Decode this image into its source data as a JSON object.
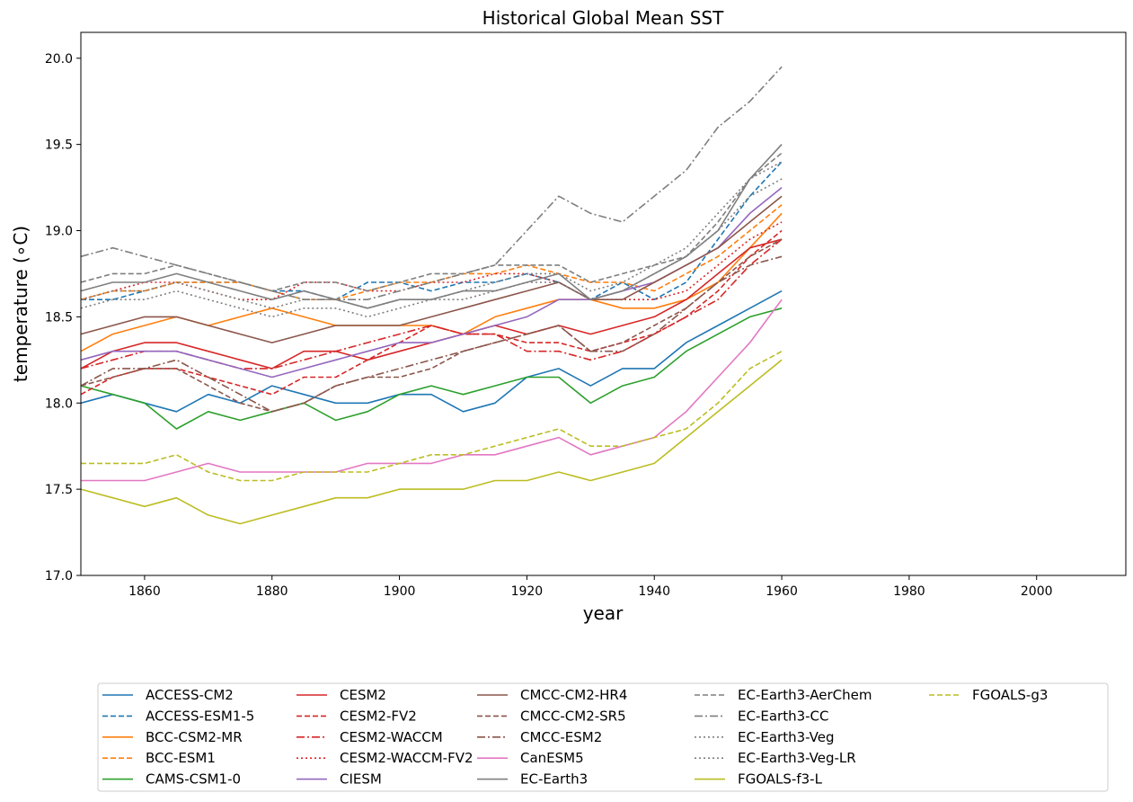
{
  "chart_data": {
    "type": "line",
    "title": "Historical Global Mean SST",
    "xlabel": "year",
    "ylabel": "temperature (∘C)",
    "xlim": [
      1850,
      2014
    ],
    "ylim": [
      17.0,
      20.15
    ],
    "xticks": [
      1860,
      1880,
      1900,
      1920,
      1940,
      1960,
      1980,
      2000
    ],
    "yticks": [
      17.0,
      17.5,
      18.0,
      18.5,
      19.0,
      19.5,
      20.0
    ],
    "grid": false,
    "legend_location": "bottom, outside plot, 5 columns",
    "x_step": 5,
    "series": [
      {
        "name": "ACCESS-CM2",
        "color": "#1f77b4",
        "linestyle": "solid",
        "values": [
          18.0,
          18.05,
          18.0,
          17.95,
          18.05,
          18.0,
          18.1,
          18.05,
          18.0,
          18.0,
          18.05,
          18.05,
          17.95,
          18.0,
          18.15,
          18.2,
          18.1,
          18.2,
          18.2,
          18.35,
          18.45,
          18.55,
          18.65
        ]
      },
      {
        "name": "ACCESS-ESM1-5",
        "color": "#1f77b4",
        "linestyle": "dashed",
        "values": [
          18.6,
          18.6,
          18.65,
          18.7,
          18.7,
          18.7,
          18.65,
          18.65,
          18.6,
          18.7,
          18.7,
          18.65,
          18.7,
          18.7,
          18.75,
          18.7,
          18.6,
          18.7,
          18.6,
          18.7,
          18.95,
          19.2,
          19.4
        ]
      },
      {
        "name": "BCC-CSM2-MR",
        "color": "#ff7f0e",
        "linestyle": "solid",
        "values": [
          18.3,
          18.4,
          18.45,
          18.5,
          18.45,
          18.5,
          18.55,
          18.5,
          18.45,
          18.45,
          18.45,
          18.45,
          18.4,
          18.5,
          18.55,
          18.6,
          18.6,
          18.55,
          18.55,
          18.6,
          18.7,
          18.9,
          19.1
        ]
      },
      {
        "name": "BCC-ESM1",
        "color": "#ff7f0e",
        "linestyle": "dashed",
        "values": [
          18.6,
          18.65,
          18.65,
          18.7,
          18.7,
          18.7,
          18.65,
          18.6,
          18.6,
          18.65,
          18.7,
          18.7,
          18.75,
          18.75,
          18.8,
          18.75,
          18.7,
          18.7,
          18.65,
          18.75,
          18.85,
          19.0,
          19.15
        ]
      },
      {
        "name": "CAMS-CSM1-0",
        "color": "#2ca02c",
        "linestyle": "solid",
        "values": [
          18.1,
          18.05,
          18.0,
          17.85,
          17.95,
          17.9,
          17.95,
          18.0,
          17.9,
          17.95,
          18.05,
          18.1,
          18.05,
          18.1,
          18.15,
          18.15,
          18.0,
          18.1,
          18.15,
          18.3,
          18.4,
          18.5,
          18.55
        ]
      },
      {
        "name": "CESM2",
        "color": "#d62728",
        "linestyle": "solid",
        "values": [
          18.2,
          18.3,
          18.35,
          18.35,
          18.3,
          18.25,
          18.2,
          18.3,
          18.3,
          18.25,
          18.3,
          18.35,
          18.4,
          18.45,
          18.4,
          18.45,
          18.4,
          18.45,
          18.5,
          18.6,
          18.75,
          18.9,
          18.95
        ]
      },
      {
        "name": "CESM2-FV2",
        "color": "#d62728",
        "linestyle": "dashed",
        "values": [
          18.05,
          18.15,
          18.2,
          18.2,
          18.15,
          18.1,
          18.05,
          18.15,
          18.15,
          18.25,
          18.35,
          18.45,
          18.4,
          18.4,
          18.35,
          18.35,
          18.3,
          18.35,
          18.4,
          18.5,
          18.65,
          18.85,
          19.0
        ]
      },
      {
        "name": "CESM2-WACCM",
        "color": "#d62728",
        "linestyle": "dashdot",
        "values": [
          18.2,
          18.25,
          18.3,
          18.3,
          18.25,
          18.2,
          18.2,
          18.25,
          18.3,
          18.35,
          18.4,
          18.45,
          18.4,
          18.4,
          18.3,
          18.3,
          18.25,
          18.3,
          18.4,
          18.5,
          18.6,
          18.8,
          18.95
        ]
      },
      {
        "name": "CESM2-WACCM-FV2",
        "color": "#d62728",
        "linestyle": "dotted",
        "values": [
          18.6,
          18.65,
          18.7,
          18.7,
          18.65,
          18.6,
          18.6,
          18.7,
          18.7,
          18.65,
          18.65,
          18.7,
          18.7,
          18.75,
          18.75,
          18.7,
          18.6,
          18.6,
          18.6,
          18.65,
          18.8,
          18.95,
          19.05
        ]
      },
      {
        "name": "CIESM",
        "color": "#9467bd",
        "linestyle": "solid",
        "values": [
          18.25,
          18.3,
          18.3,
          18.3,
          18.25,
          18.2,
          18.15,
          18.2,
          18.25,
          18.3,
          18.35,
          18.35,
          18.4,
          18.45,
          18.5,
          18.6,
          18.6,
          18.65,
          18.7,
          18.8,
          18.9,
          19.1,
          19.25
        ]
      },
      {
        "name": "CMCC-CM2-HR4",
        "color": "#8c564b",
        "linestyle": "solid",
        "values": [
          18.4,
          18.45,
          18.5,
          18.5,
          18.45,
          18.4,
          18.35,
          18.4,
          18.45,
          18.45,
          18.45,
          18.5,
          18.55,
          18.6,
          18.65,
          18.7,
          18.6,
          18.6,
          18.7,
          18.8,
          18.9,
          19.05,
          19.2
        ]
      },
      {
        "name": "CMCC-CM2-SR5",
        "color": "#8c564b",
        "linestyle": "dashed",
        "values": [
          18.1,
          18.15,
          18.2,
          18.2,
          18.1,
          18.0,
          17.95,
          18.0,
          18.1,
          18.15,
          18.15,
          18.2,
          18.3,
          18.35,
          18.4,
          18.45,
          18.3,
          18.35,
          18.45,
          18.55,
          18.7,
          18.85,
          18.95
        ]
      },
      {
        "name": "CMCC-ESM2",
        "color": "#8c564b",
        "linestyle": "dashdot",
        "values": [
          18.1,
          18.2,
          18.2,
          18.25,
          18.15,
          18.05,
          17.95,
          18.0,
          18.1,
          18.15,
          18.2,
          18.25,
          18.3,
          18.35,
          18.4,
          18.45,
          18.3,
          18.3,
          18.4,
          18.55,
          18.7,
          18.8,
          18.85
        ]
      },
      {
        "name": "CanESM5",
        "color": "#e377c2",
        "linestyle": "solid",
        "values": [
          17.55,
          17.55,
          17.55,
          17.6,
          17.65,
          17.6,
          17.6,
          17.6,
          17.6,
          17.65,
          17.65,
          17.65,
          17.7,
          17.7,
          17.75,
          17.8,
          17.7,
          17.75,
          17.8,
          17.95,
          18.15,
          18.35,
          18.6
        ]
      },
      {
        "name": "EC-Earth3",
        "color": "#7f7f7f",
        "linestyle": "solid",
        "values": [
          18.65,
          18.7,
          18.7,
          18.75,
          18.7,
          18.65,
          18.6,
          18.65,
          18.6,
          18.55,
          18.6,
          18.6,
          18.65,
          18.65,
          18.7,
          18.75,
          18.6,
          18.65,
          18.75,
          18.85,
          19.0,
          19.3,
          19.5
        ]
      },
      {
        "name": "EC-Earth3-AerChem",
        "color": "#7f7f7f",
        "linestyle": "dashed",
        "values": [
          18.7,
          18.75,
          18.75,
          18.8,
          18.75,
          18.7,
          18.65,
          18.7,
          18.7,
          18.65,
          18.7,
          18.75,
          18.75,
          18.8,
          18.8,
          18.8,
          18.7,
          18.75,
          18.8,
          18.85,
          19.05,
          19.3,
          19.45
        ]
      },
      {
        "name": "EC-Earth3-CC",
        "color": "#7f7f7f",
        "linestyle": "dashdot",
        "values": [
          18.85,
          18.9,
          18.85,
          18.8,
          18.75,
          18.7,
          18.65,
          18.6,
          18.6,
          18.6,
          18.65,
          18.7,
          18.75,
          18.8,
          19.0,
          19.2,
          19.1,
          19.05,
          19.2,
          19.35,
          19.6,
          19.75,
          19.95
        ]
      },
      {
        "name": "EC-Earth3-Veg",
        "color": "#7f7f7f",
        "linestyle": "dotted",
        "values": [
          18.6,
          18.65,
          18.65,
          18.7,
          18.65,
          18.6,
          18.55,
          18.6,
          18.6,
          18.55,
          18.6,
          18.6,
          18.65,
          18.7,
          18.75,
          18.75,
          18.65,
          18.7,
          18.8,
          18.9,
          19.1,
          19.3,
          19.4
        ]
      },
      {
        "name": "EC-Earth3-Veg-LR",
        "color": "#7f7f7f",
        "linestyle": "dotted",
        "values": [
          18.55,
          18.6,
          18.6,
          18.65,
          18.6,
          18.55,
          18.5,
          18.55,
          18.55,
          18.5,
          18.55,
          18.6,
          18.6,
          18.65,
          18.7,
          18.7,
          18.6,
          18.65,
          18.75,
          18.85,
          19.0,
          19.2,
          19.3
        ]
      },
      {
        "name": "FGOALS-f3-L",
        "color": "#bcbd22",
        "linestyle": "solid",
        "values": [
          17.5,
          17.45,
          17.4,
          17.45,
          17.35,
          17.3,
          17.35,
          17.4,
          17.45,
          17.45,
          17.5,
          17.5,
          17.5,
          17.55,
          17.55,
          17.6,
          17.55,
          17.6,
          17.65,
          17.8,
          17.95,
          18.1,
          18.25
        ]
      },
      {
        "name": "FGOALS-g3",
        "color": "#bcbd22",
        "linestyle": "dashed",
        "values": [
          17.65,
          17.65,
          17.65,
          17.7,
          17.6,
          17.55,
          17.55,
          17.6,
          17.6,
          17.6,
          17.65,
          17.7,
          17.7,
          17.75,
          17.8,
          17.85,
          17.75,
          17.75,
          17.8,
          17.85,
          18.0,
          18.2,
          18.3
        ]
      }
    ]
  }
}
